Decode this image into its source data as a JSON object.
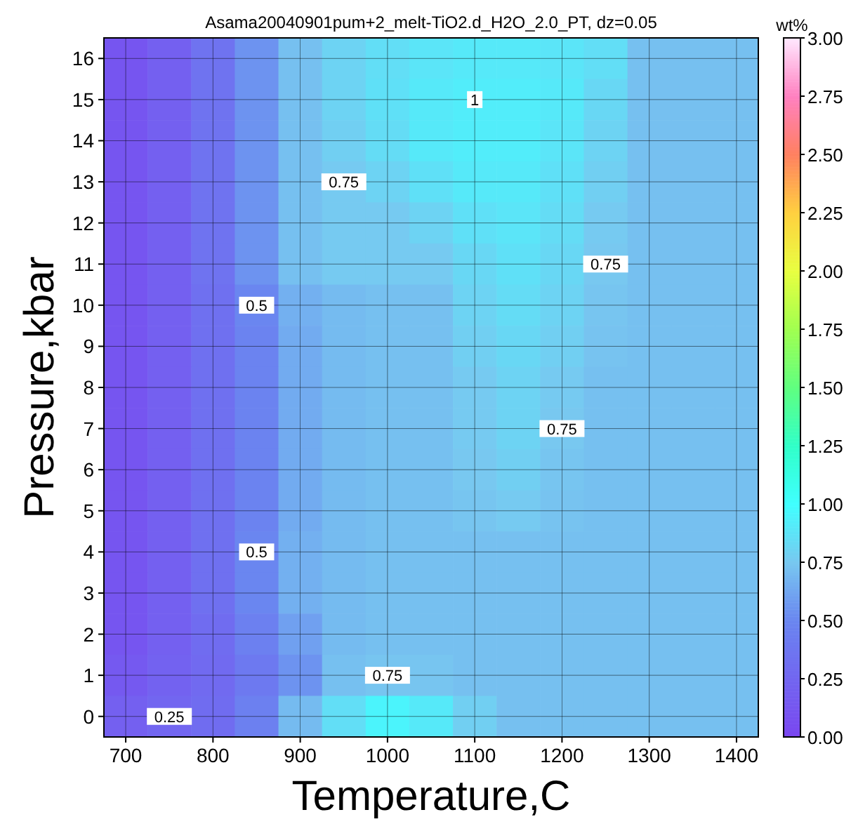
{
  "chart_data": {
    "type": "heatmap",
    "title": "Asama20040901pum+2_melt-TiO2.d_H2O_2.0_PT, dz=0.05",
    "xlabel": "Temperature,C",
    "ylabel": "Pressure,kbar",
    "clabel": "wt%",
    "categories": [
      "700",
      null,
      "800",
      null,
      "900",
      null,
      "1000",
      null,
      "1100",
      null,
      "1200",
      null,
      "1300",
      null,
      "1400"
    ],
    "y_categories": [
      "16",
      "15",
      "14",
      "13",
      "12",
      "11",
      "10",
      "9",
      "8",
      "7",
      "6",
      "5",
      "4",
      "3",
      "2",
      "1",
      "0"
    ],
    "grid": true,
    "clim": [
      0,
      3
    ],
    "cticks": [
      {
        "value": 0,
        "label": "0.00"
      },
      {
        "value": 0.25,
        "label": "0.25"
      },
      {
        "value": 0.5,
        "label": "0.50"
      },
      {
        "value": 0.75,
        "label": "0.75"
      },
      {
        "value": 1,
        "label": "1.00"
      },
      {
        "value": 1.25,
        "label": "1.25"
      },
      {
        "value": 1.5,
        "label": "1.50"
      },
      {
        "value": 1.75,
        "label": "1.75"
      },
      {
        "value": 2,
        "label": "2.00"
      },
      {
        "value": 2.25,
        "label": "2.25"
      },
      {
        "value": 2.5,
        "label": "2.50"
      },
      {
        "value": 2.75,
        "label": "2.75"
      },
      {
        "value": 3,
        "label": "3.00"
      }
    ],
    "cells": [
      [
        0.12,
        0.2,
        0.35,
        0.55,
        0.72,
        0.8,
        0.85,
        0.88,
        0.9,
        0.9,
        0.88,
        0.85,
        0.72,
        0.72,
        0.72
      ],
      [
        0.12,
        0.2,
        0.35,
        0.55,
        0.72,
        0.8,
        0.86,
        0.9,
        0.92,
        0.92,
        0.9,
        0.82,
        0.72,
        0.72,
        0.72
      ],
      [
        0.12,
        0.2,
        0.35,
        0.55,
        0.72,
        0.78,
        0.84,
        0.9,
        0.92,
        0.92,
        0.88,
        0.8,
        0.72,
        0.72,
        0.72
      ],
      [
        0.12,
        0.2,
        0.35,
        0.55,
        0.72,
        0.76,
        0.8,
        0.86,
        0.9,
        0.9,
        0.86,
        0.78,
        0.72,
        0.72,
        0.72
      ],
      [
        0.12,
        0.2,
        0.35,
        0.55,
        0.72,
        0.76,
        0.76,
        0.8,
        0.86,
        0.88,
        0.84,
        0.76,
        0.72,
        0.72,
        0.72
      ],
      [
        0.12,
        0.2,
        0.35,
        0.55,
        0.72,
        0.76,
        0.76,
        0.76,
        0.82,
        0.86,
        0.82,
        0.75,
        0.72,
        0.72,
        0.72
      ],
      [
        0.12,
        0.2,
        0.33,
        0.5,
        0.66,
        0.7,
        0.72,
        0.72,
        0.8,
        0.84,
        0.8,
        0.74,
        0.72,
        0.72,
        0.72
      ],
      [
        0.12,
        0.2,
        0.33,
        0.48,
        0.64,
        0.7,
        0.72,
        0.72,
        0.78,
        0.82,
        0.78,
        0.73,
        0.72,
        0.72,
        0.72
      ],
      [
        0.12,
        0.2,
        0.33,
        0.48,
        0.64,
        0.7,
        0.72,
        0.72,
        0.76,
        0.8,
        0.76,
        0.72,
        0.72,
        0.72,
        0.72
      ],
      [
        0.12,
        0.2,
        0.33,
        0.48,
        0.64,
        0.7,
        0.72,
        0.72,
        0.76,
        0.8,
        0.75,
        0.72,
        0.72,
        0.72,
        0.72
      ],
      [
        0.12,
        0.2,
        0.33,
        0.48,
        0.64,
        0.7,
        0.72,
        0.72,
        0.75,
        0.78,
        0.74,
        0.72,
        0.72,
        0.72,
        0.72
      ],
      [
        0.12,
        0.2,
        0.33,
        0.48,
        0.64,
        0.7,
        0.72,
        0.72,
        0.74,
        0.76,
        0.73,
        0.72,
        0.72,
        0.72,
        0.72
      ],
      [
        0.12,
        0.2,
        0.33,
        0.5,
        0.66,
        0.7,
        0.72,
        0.72,
        0.72,
        0.72,
        0.72,
        0.72,
        0.72,
        0.72,
        0.72
      ],
      [
        0.12,
        0.2,
        0.33,
        0.5,
        0.66,
        0.7,
        0.72,
        0.72,
        0.72,
        0.72,
        0.72,
        0.72,
        0.72,
        0.72,
        0.72
      ],
      [
        0.12,
        0.2,
        0.3,
        0.45,
        0.6,
        0.7,
        0.72,
        0.72,
        0.72,
        0.72,
        0.72,
        0.72,
        0.72,
        0.72,
        0.72
      ],
      [
        0.15,
        0.22,
        0.28,
        0.4,
        0.55,
        0.72,
        0.74,
        0.74,
        0.72,
        0.72,
        0.72,
        0.72,
        0.72,
        0.72,
        0.72
      ],
      [
        0.2,
        0.25,
        0.3,
        0.45,
        0.7,
        0.85,
        0.95,
        0.9,
        0.78,
        0.72,
        0.72,
        0.72,
        0.72,
        0.72,
        0.72
      ]
    ],
    "annotations": [
      "0.75",
      "0.75",
      "0.75",
      "0.5",
      "0.5",
      "0.25",
      "0.75",
      "1"
    ]
  }
}
